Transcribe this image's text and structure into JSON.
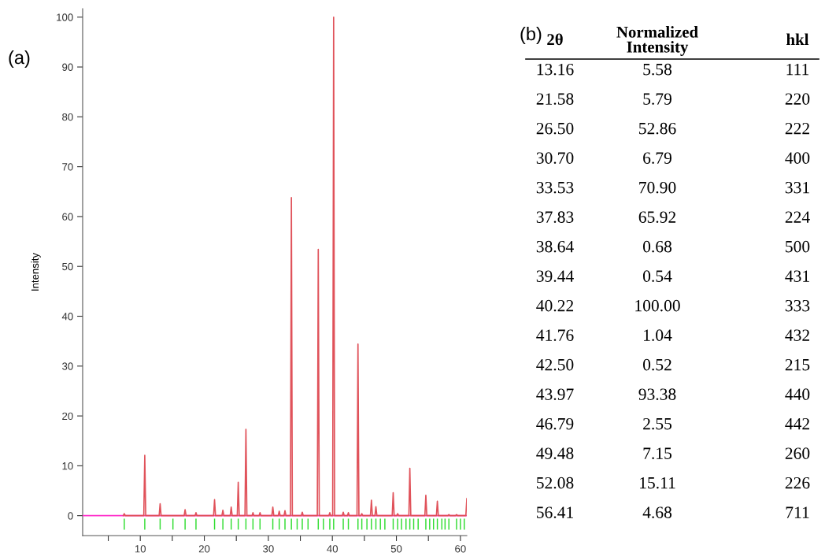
{
  "chart_data": [
    {
      "type": "line",
      "title": "(a)",
      "ylabel": "Intensity",
      "xlim": [
        1,
        61
      ],
      "ylim": [
        -4,
        101.7
      ],
      "xticks": [
        {
          "value": 5,
          "label": null
        },
        10,
        {
          "value": 15,
          "label": null
        },
        20,
        {
          "value": 25,
          "label": null
        },
        30,
        {
          "value": 35,
          "label": null
        },
        40,
        {
          "value": 45,
          "label": null
        },
        50,
        {
          "value": 55,
          "label": null
        },
        60
      ],
      "yticks": [
        0,
        10,
        20,
        30,
        40,
        50,
        60,
        70,
        80,
        90,
        100
      ],
      "grid": false,
      "legend": false,
      "marker": "none",
      "line_style": "solid",
      "series": [
        {
          "type": "line",
          "color": "#ff33cc",
          "x": [
            1,
            61
          ],
          "values": [
            0,
            0
          ]
        },
        {
          "type": "line",
          "color": "#e0525a",
          "x": [
            7.35,
            7.5,
            7.65,
            10.55,
            10.7,
            10.85,
            12.95,
            13.1,
            13.25,
            16.85,
            17.0,
            17.15,
            18.55,
            18.7,
            18.85,
            21.45,
            21.6,
            21.75,
            22.75,
            22.9,
            23.05,
            24.05,
            24.2,
            24.35,
            25.15,
            25.3,
            25.45,
            26.35,
            26.5,
            26.65,
            27.45,
            27.6,
            27.75,
            28.55,
            28.7,
            28.85,
            30.55,
            30.7,
            30.85,
            31.55,
            31.7,
            31.85,
            32.45,
            32.6,
            32.75,
            33.45,
            33.6,
            33.75,
            35.15,
            35.3,
            35.45,
            37.65,
            37.8,
            37.95,
            39.45,
            39.6,
            39.75,
            40.05,
            40.2,
            40.35,
            41.55,
            41.7,
            41.85,
            42.35,
            42.5,
            42.65,
            43.85,
            44.0,
            44.15,
            44.45,
            44.6,
            44.75,
            45.95,
            46.1,
            46.25,
            46.65,
            46.8,
            46.95,
            49.35,
            49.5,
            49.65,
            50.05,
            50.2,
            50.35,
            51.95,
            52.1,
            52.25,
            54.45,
            54.6,
            54.75,
            56.25,
            56.4,
            56.55,
            58.05,
            58.2,
            58.35,
            59.25,
            59.4,
            59.55,
            60.85,
            61.0
          ],
          "values": [
            0,
            0.4,
            0,
            0,
            12.1,
            0,
            0,
            2.4,
            0,
            0,
            1.2,
            0,
            0,
            0.6,
            0,
            0,
            3.2,
            0,
            0,
            1.1,
            0,
            0,
            1.7,
            0,
            0,
            6.7,
            0,
            0,
            17.3,
            0,
            0,
            0.6,
            0,
            0,
            0.6,
            0,
            0,
            1.7,
            0,
            0,
            0.9,
            0,
            0,
            1.0,
            0,
            0,
            63.8,
            0,
            0,
            0.7,
            0,
            0,
            53.4,
            0,
            0,
            0.6,
            0,
            0,
            100,
            0,
            0,
            0.7,
            0,
            0,
            0.6,
            0,
            0,
            34.4,
            0,
            0,
            0.4,
            0,
            0,
            3.1,
            0,
            0,
            1.8,
            0,
            0,
            4.6,
            0,
            0,
            0.4,
            0,
            0,
            9.5,
            0,
            0,
            4.1,
            0,
            0,
            2.9,
            0,
            0,
            0.2,
            0,
            0,
            0.2,
            0,
            0,
            3.4
          ]
        },
        {
          "type": "bar",
          "color": "#33dd33",
          "x": [
            7.5,
            10.7,
            13.1,
            15.1,
            17.0,
            18.7,
            21.6,
            22.9,
            24.2,
            25.3,
            26.5,
            27.6,
            28.7,
            30.7,
            31.7,
            32.6,
            33.6,
            34.5,
            35.3,
            36.2,
            37.8,
            38.6,
            39.6,
            40.2,
            41.7,
            42.5,
            44.0,
            44.6,
            45.4,
            46.1,
            46.8,
            47.5,
            48.2,
            49.5,
            50.2,
            50.8,
            51.5,
            52.1,
            52.7,
            53.4,
            54.6,
            55.2,
            55.8,
            56.4,
            57.1,
            57.6,
            58.2,
            59.4,
            60.0,
            60.6
          ],
          "base": [
            -2.8,
            -2.8,
            -2.8,
            -2.8,
            -2.8,
            -2.8,
            -2.8,
            -2.8,
            -2.8,
            -2.8,
            -2.8,
            -2.8,
            -2.8,
            -2.8,
            -2.8,
            -2.8,
            -2.8,
            -2.8,
            -2.8,
            -2.8,
            -2.8,
            -2.8,
            -2.8,
            -2.8,
            -2.8,
            -2.8,
            -2.8,
            -2.8,
            -2.8,
            -2.8,
            -2.8,
            -2.8,
            -2.8,
            -2.8,
            -2.8,
            -2.8,
            -2.8,
            -2.8,
            -2.8,
            -2.8,
            -2.8,
            -2.8,
            -2.8,
            -2.8,
            -2.8,
            -2.8,
            -2.8,
            -2.8,
            -2.8,
            -2.8
          ],
          "values": [
            2.2,
            2.2,
            2.2,
            2.2,
            2.2,
            2.2,
            2.2,
            2.2,
            2.2,
            2.2,
            2.2,
            2.2,
            2.2,
            2.2,
            2.2,
            2.2,
            2.2,
            2.2,
            2.2,
            2.2,
            2.2,
            2.2,
            2.2,
            2.2,
            2.2,
            2.2,
            2.2,
            2.2,
            2.2,
            2.2,
            2.2,
            2.2,
            2.2,
            2.2,
            2.2,
            2.2,
            2.2,
            2.2,
            2.2,
            2.2,
            2.2,
            2.2,
            2.2,
            2.2,
            2.2,
            2.2,
            2.2,
            2.2,
            2.2,
            2.2
          ]
        }
      ]
    },
    {
      "type": "other",
      "title": "(b)",
      "categories": [
        "2θ",
        "Normalized\nIntensity",
        "hkl"
      ],
      "cell_labels": [
        [
          "13.16",
          "5.58",
          "111"
        ],
        [
          "21.58",
          "5.79",
          "220"
        ],
        [
          "26.50",
          "52.86",
          "222"
        ],
        [
          "30.70",
          "6.79",
          "400"
        ],
        [
          "33.53",
          "70.90",
          "331"
        ],
        [
          "37.83",
          "65.92",
          "224"
        ],
        [
          "38.64",
          "0.68",
          "500"
        ],
        [
          "39.44",
          "0.54",
          "431"
        ],
        [
          "40.22",
          "100.00",
          "333"
        ],
        [
          "41.76",
          "1.04",
          "432"
        ],
        [
          "42.50",
          "0.52",
          "215"
        ],
        [
          "43.97",
          "93.38",
          "440"
        ],
        [
          "46.79",
          "2.55",
          "442"
        ],
        [
          "49.48",
          "7.15",
          "260"
        ],
        [
          "52.08",
          "15.11",
          "226"
        ],
        [
          "56.41",
          "4.68",
          "711"
        ]
      ]
    }
  ]
}
